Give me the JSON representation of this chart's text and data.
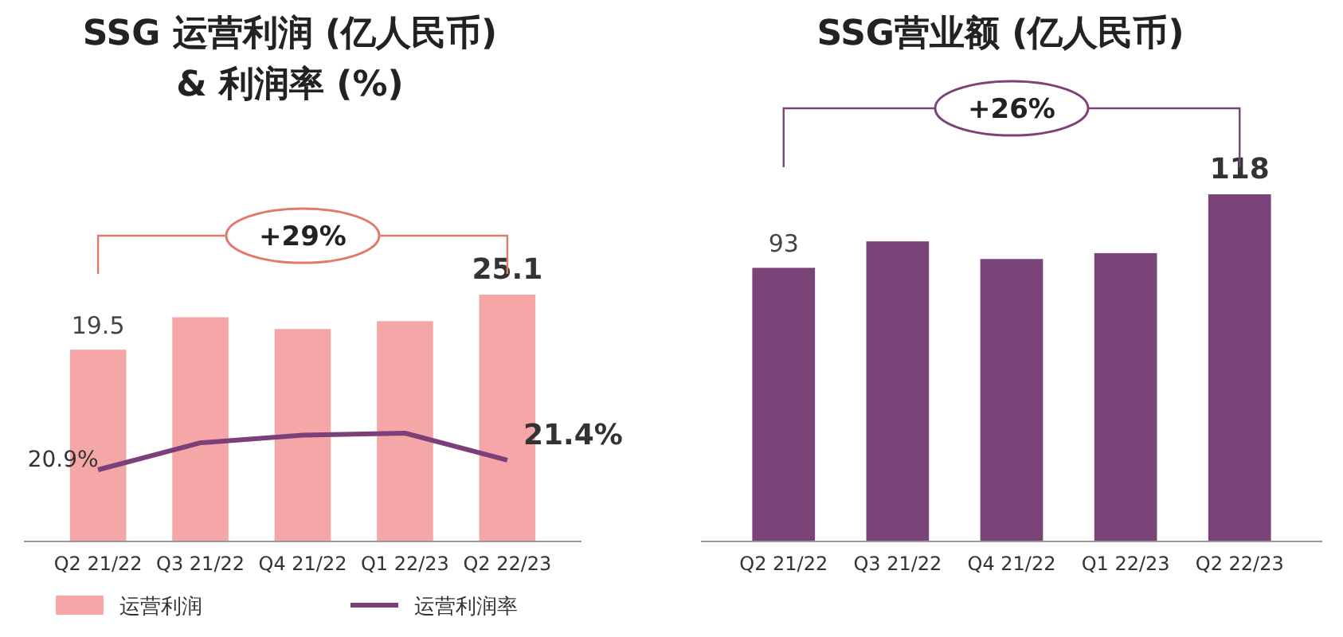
{
  "chart_data": [
    {
      "type": "bar",
      "title": "SSG 运营利润 (亿人民币)\n& 利润率 (%)",
      "categories": [
        "Q2 21/22",
        "Q3 21/22",
        "Q4 21/22",
        "Q1 22/23",
        "Q2 22/23"
      ],
      "series": [
        {
          "name": "运营利润",
          "color": "#f4a7a6",
          "values": [
            19.5,
            22.8,
            21.6,
            22.4,
            25.1
          ],
          "value_labels": [
            "19.5",
            null,
            null,
            null,
            "25.1"
          ]
        },
        {
          "name": "运营利润率",
          "type": "line",
          "axis": "y2",
          "color": "#7b3f7a",
          "values": [
            20.9,
            22.3,
            22.7,
            22.8,
            21.4
          ],
          "value_labels": [
            "20.9%",
            null,
            null,
            null,
            "21.4%"
          ]
        }
      ],
      "legend": "bottom",
      "annotations": [
        "+29%"
      ]
    },
    {
      "type": "bar",
      "title": "SSG营业额 (亿人民币)",
      "categories": [
        "Q2 21/22",
        "Q3 21/22",
        "Q4 21/22",
        "Q1 22/23",
        "Q2 22/23"
      ],
      "series": [
        {
          "color": "#7a4478",
          "values": [
            93,
            102,
            96,
            98,
            118
          ],
          "value_labels": [
            "93",
            null,
            null,
            null,
            "118"
          ]
        }
      ],
      "legend": false,
      "annotations": [
        "+26%"
      ]
    }
  ]
}
